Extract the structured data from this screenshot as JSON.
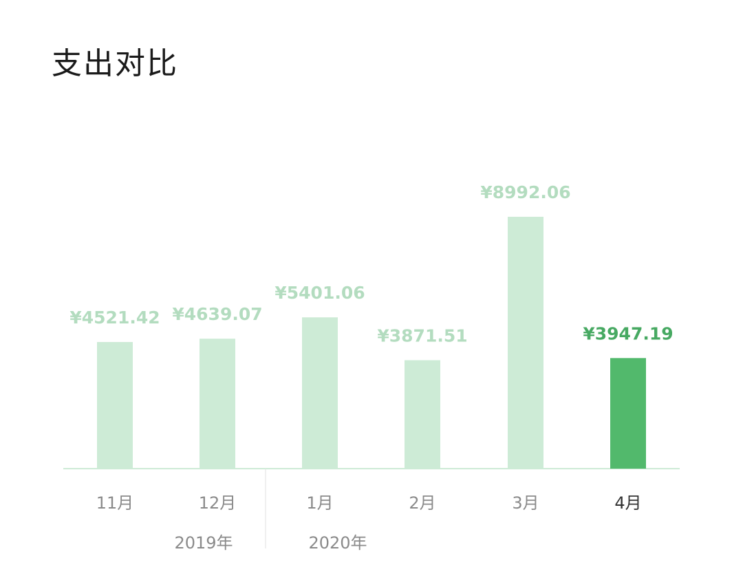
{
  "title": "支出对比",
  "chart_data": {
    "type": "bar",
    "title": "",
    "categories": [
      "11月",
      "12月",
      "1月",
      "2月",
      "3月",
      "4月"
    ],
    "values": [
      4521.42,
      4639.07,
      5401.06,
      3871.51,
      8992.06,
      3947.19
    ],
    "value_labels": [
      "¥4521.42",
      "¥4639.07",
      "¥5401.06",
      "¥3871.51",
      "¥8992.06",
      "¥3947.19"
    ],
    "year_groups": [
      {
        "label": "2019年",
        "categories": [
          "11月",
          "12月"
        ]
      },
      {
        "label": "2020年",
        "categories": [
          "1月",
          "2月",
          "3月",
          "4月"
        ]
      }
    ],
    "highlighted_index": 5,
    "ylim": [
      0,
      8992.06
    ],
    "grid": false,
    "xlabel": "",
    "ylabel": "",
    "colors": {
      "bar": "#cdebd6",
      "bar_label": "#b3dcbf",
      "highlight_bar": "#52b96c",
      "highlight_label": "#47a962",
      "baseline": "#cdebd6",
      "axis_label": "#8a8a8a",
      "highlight_axis_label": "#333333",
      "year_label": "#8a8a8a"
    }
  }
}
